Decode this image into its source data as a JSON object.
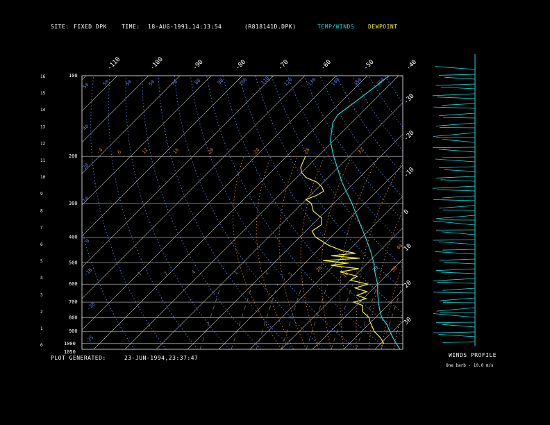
{
  "header": {
    "site_label": "SITE:",
    "site_value": "FIXED DPK",
    "time_label": "TIME:",
    "time_value": "18-AUG-1991,14:13:54",
    "file_name": "(R818141D.DPK)",
    "legend_temp_winds": "TEMP/WINDS",
    "legend_dewpoint": "DEWPOINT"
  },
  "footer": {
    "plot_generated_label": "PLOT GENERATED:",
    "plot_generated_value": "23-JUN-1994,23:37:47",
    "winds_profile_label": "WINDS PROFILE",
    "barb_note": "One barb - 10.0 m/s"
  },
  "colors": {
    "temp_winds": "#22d8d8",
    "dewpoint": "#f4f23a",
    "isotherm_grid": "#c8c8c8",
    "dry_adiabat": "#5a7ee0",
    "moist_adiabat": "#d98038",
    "mixing_ratio": "#808080"
  },
  "chart_data": {
    "type": "line",
    "pressure_ticks": [
      100,
      200,
      300,
      400,
      500,
      600,
      700,
      800,
      900,
      1000,
      1050
    ],
    "height_ticks_km": [
      0,
      1,
      2,
      3,
      4,
      5,
      6,
      7,
      8,
      9,
      10,
      11,
      12,
      13,
      14,
      15,
      16
    ],
    "top_temp_labels": [
      -110,
      -100,
      -90,
      -80,
      -70,
      -60,
      -50,
      -40
    ],
    "right_temp_labels": [
      -30,
      -20,
      -10,
      0,
      10,
      20,
      30
    ],
    "dry_adiabat_labels": [
      "50",
      "50",
      "50",
      "50",
      "70",
      "80",
      "90",
      "100",
      "110",
      "120",
      "130",
      "140",
      "150",
      "160",
      "40",
      "20",
      "10",
      "0",
      "-10",
      "-20",
      "-25"
    ],
    "moist_adiabat_labels": [
      "-4",
      "6",
      "12",
      "16",
      "20",
      "24",
      "28",
      "32",
      "20",
      "10",
      "20",
      "30",
      "40"
    ],
    "mixing_ratio_labels": [
      ".1",
      ".2",
      ".4",
      "1",
      "2",
      "3"
    ],
    "temperature_profile": [
      [
        1050,
        28
      ],
      [
        1000,
        25
      ],
      [
        950,
        22
      ],
      [
        900,
        19
      ],
      [
        850,
        16
      ],
      [
        800,
        12
      ],
      [
        750,
        9
      ],
      [
        700,
        6
      ],
      [
        650,
        3
      ],
      [
        600,
        0
      ],
      [
        550,
        -4
      ],
      [
        500,
        -8
      ],
      [
        450,
        -13
      ],
      [
        400,
        -19
      ],
      [
        350,
        -26
      ],
      [
        300,
        -34
      ],
      [
        250,
        -44
      ],
      [
        200,
        -55
      ],
      [
        175,
        -61
      ],
      [
        150,
        -66
      ],
      [
        140,
        -67
      ],
      [
        130,
        -66
      ],
      [
        120,
        -65
      ],
      [
        110,
        -64
      ],
      [
        100,
        -63
      ]
    ],
    "dewpoint_profile": [
      [
        1000,
        21
      ],
      [
        950,
        18
      ],
      [
        900,
        14
      ],
      [
        850,
        11
      ],
      [
        820,
        9
      ],
      [
        800,
        8
      ],
      [
        760,
        4
      ],
      [
        720,
        2
      ],
      [
        700,
        -2
      ],
      [
        680,
        1
      ],
      [
        660,
        -3
      ],
      [
        640,
        -1
      ],
      [
        620,
        -6
      ],
      [
        600,
        -3
      ],
      [
        580,
        -10
      ],
      [
        560,
        -9
      ],
      [
        540,
        -16
      ],
      [
        525,
        -11
      ],
      [
        510,
        -21
      ],
      [
        500,
        -16
      ],
      [
        490,
        -25
      ],
      [
        480,
        -14
      ],
      [
        470,
        -24
      ],
      [
        460,
        -17
      ],
      [
        450,
        -22
      ],
      [
        430,
        -28
      ],
      [
        400,
        -35
      ],
      [
        380,
        -38
      ],
      [
        360,
        -37
      ],
      [
        340,
        -39
      ],
      [
        320,
        -44
      ],
      [
        300,
        -47
      ],
      [
        290,
        -50
      ],
      [
        280,
        -48
      ],
      [
        270,
        -47
      ],
      [
        260,
        -49
      ],
      [
        250,
        -52
      ],
      [
        240,
        -57
      ],
      [
        230,
        -60
      ],
      [
        220,
        -62
      ],
      [
        210,
        -63
      ],
      [
        200,
        -64
      ]
    ],
    "xlim_temp_c": [
      -40,
      40
    ],
    "ylim_pressure_hpa": [
      1050,
      100
    ],
    "log_pressure_axis": true,
    "grid": true
  }
}
